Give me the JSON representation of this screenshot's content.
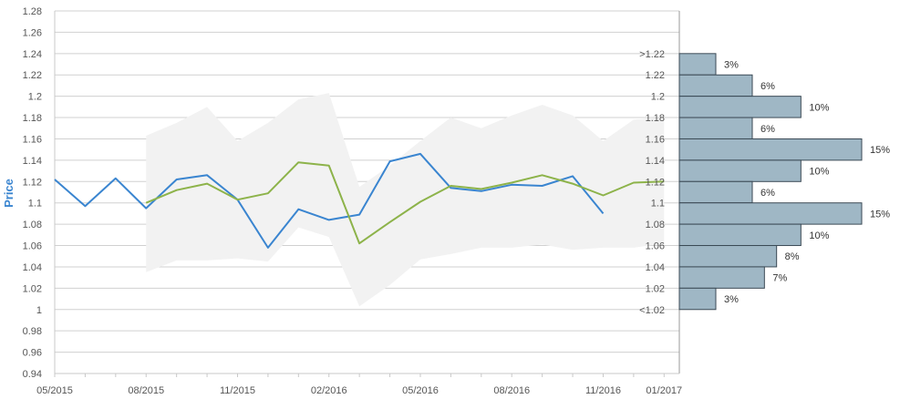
{
  "chart_data": {
    "type": "line",
    "ylabel": "Price",
    "ylim": [
      0.94,
      1.28
    ],
    "y_ticks": [
      "0.94",
      "0.96",
      "0.98",
      "1",
      "1.02",
      "1.04",
      "1.06",
      "1.08",
      "1.1",
      "1.12",
      "1.14",
      "1.16",
      "1.18",
      "1.2",
      "1.22",
      "1.24",
      "1.26",
      "1.28"
    ],
    "x_labels": [
      "05/2015",
      "08/2015",
      "11/2015",
      "02/2016",
      "05/2016",
      "08/2016",
      "11/2016",
      "01/2017"
    ],
    "grid": true,
    "series": [
      {
        "color": "#3a85d0",
        "x": [
          "05/2015",
          "06/2015",
          "07/2015",
          "08/2015",
          "09/2015",
          "10/2015",
          "11/2015",
          "12/2015",
          "01/2016",
          "02/2016",
          "03/2016",
          "04/2016",
          "05/2016",
          "06/2016",
          "07/2016",
          "08/2016",
          "09/2016",
          "10/2016",
          "11/2016"
        ],
        "values": [
          1.122,
          1.097,
          1.123,
          1.095,
          1.122,
          1.126,
          1.103,
          1.058,
          1.094,
          1.084,
          1.089,
          1.139,
          1.146,
          1.114,
          1.111,
          1.117,
          1.116,
          1.125,
          1.09
        ]
      },
      {
        "color": "#8db34a",
        "x": [
          "08/2015",
          "09/2015",
          "10/2015",
          "11/2015",
          "12/2015",
          "01/2016",
          "02/2016",
          "03/2016",
          "04/2016",
          "05/2016",
          "06/2016",
          "07/2016",
          "08/2016",
          "09/2016",
          "10/2016",
          "11/2016",
          "12/2016",
          "01/2017"
        ],
        "values": [
          1.1,
          1.112,
          1.118,
          1.103,
          1.109,
          1.138,
          1.135,
          1.062,
          1.082,
          1.101,
          1.116,
          1.113,
          1.119,
          1.126,
          1.118,
          1.107,
          1.119,
          1.12
        ]
      }
    ],
    "band": {
      "color": "#f2f2f2",
      "x": [
        "08/2015",
        "09/2015",
        "10/2015",
        "11/2015",
        "12/2015",
        "01/2016",
        "02/2016",
        "03/2016",
        "04/2016",
        "05/2016",
        "06/2016",
        "07/2016",
        "08/2016",
        "09/2016",
        "10/2016",
        "11/2016",
        "12/2016",
        "01/2017"
      ],
      "upper": [
        1.163,
        1.175,
        1.19,
        1.158,
        1.175,
        1.197,
        1.203,
        1.115,
        1.135,
        1.158,
        1.18,
        1.17,
        1.182,
        1.192,
        1.182,
        1.158,
        1.178,
        1.18
      ],
      "lower": [
        1.035,
        1.046,
        1.046,
        1.048,
        1.045,
        1.077,
        1.068,
        1.003,
        1.023,
        1.047,
        1.052,
        1.058,
        1.058,
        1.061,
        1.056,
        1.058,
        1.058,
        1.062
      ]
    },
    "distribution": {
      "color": "#9fb7c5",
      "bins": [
        {
          "label": ">1.22",
          "percent": 3,
          "percent_label": "3%"
        },
        {
          "label": "1.22",
          "percent": 6,
          "percent_label": "6%"
        },
        {
          "label": "1.2",
          "percent": 10,
          "percent_label": "10%"
        },
        {
          "label": "1.18",
          "percent": 6,
          "percent_label": "6%"
        },
        {
          "label": "1.16",
          "percent": 15,
          "percent_label": "15%"
        },
        {
          "label": "1.14",
          "percent": 10,
          "percent_label": "10%"
        },
        {
          "label": "1.12",
          "percent": 6,
          "percent_label": "6%"
        },
        {
          "label": "1.1",
          "percent": 15,
          "percent_label": "15%"
        },
        {
          "label": "1.08",
          "percent": 10,
          "percent_label": "10%"
        },
        {
          "label": "1.06",
          "percent": 8,
          "percent_label": "8%"
        },
        {
          "label": "1.04",
          "percent": 7,
          "percent_label": "7%"
        },
        {
          "label": "1.02",
          "percent": 3,
          "percent_label": "3%"
        },
        {
          "label": "<1.02",
          "percent": null,
          "percent_label": ""
        }
      ]
    }
  }
}
